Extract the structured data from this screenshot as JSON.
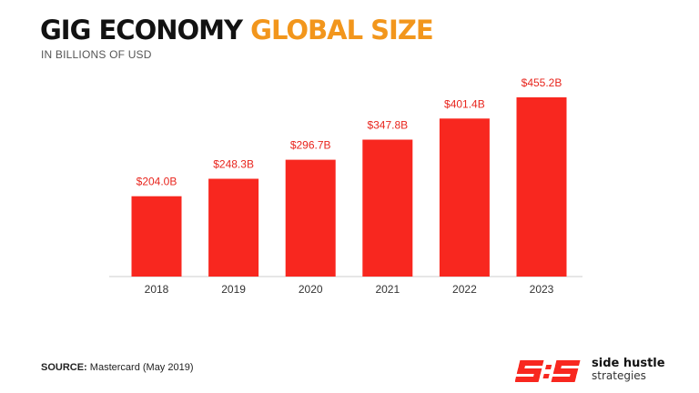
{
  "header": {
    "title_part1": "GIG ECONOMY",
    "title_part2": "GLOBAL SIZE",
    "subtitle": "IN BILLIONS OF USD"
  },
  "colors": {
    "bar": "#f8271f",
    "label": "#e8251d",
    "title_dark": "#121212",
    "title_accent": "#f2961c",
    "axis": "#cccccc"
  },
  "chart_data": {
    "type": "bar",
    "title": "",
    "xlabel": "",
    "ylabel": "",
    "categories": [
      "2018",
      "2019",
      "2020",
      "2021",
      "2022",
      "2023"
    ],
    "values": [
      204.0,
      248.3,
      296.7,
      347.8,
      401.4,
      455.2
    ],
    "data_labels": [
      "$204.0B",
      "$248.3B",
      "$296.7B",
      "$347.8B",
      "$401.4B",
      "$455.2B"
    ],
    "ylim": [
      0,
      455.2
    ],
    "grid": false,
    "legend": "none"
  },
  "footer": {
    "source_label": "SOURCE:",
    "source_text": " Mastercard (May 2019)"
  },
  "brand": {
    "name_line1": "side hustle",
    "name_line2": "strategies",
    "logo_icon": "shs-logo-icon"
  }
}
